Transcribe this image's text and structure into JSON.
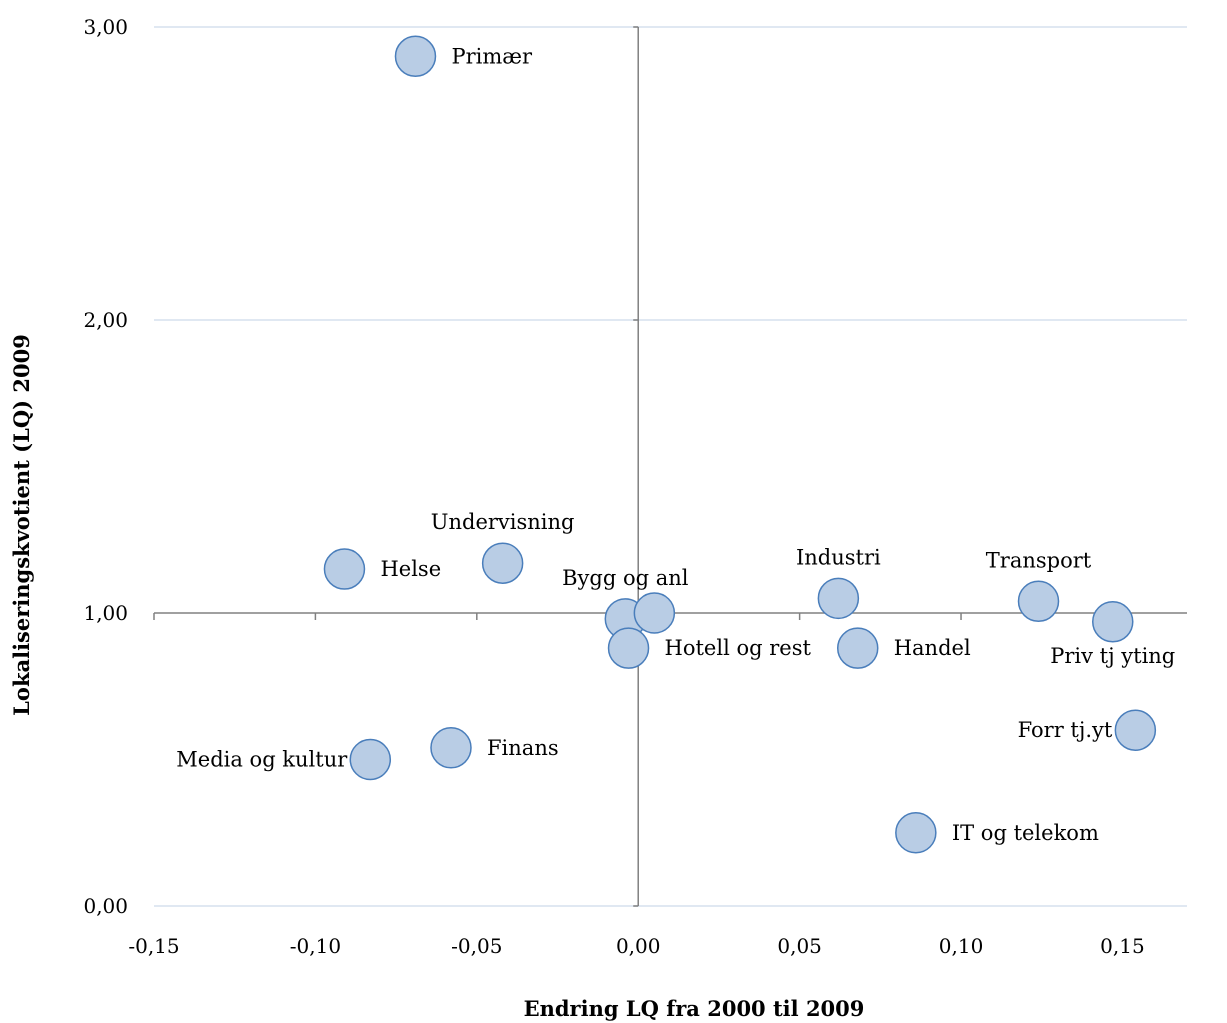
{
  "chart_data": {
    "type": "scatter",
    "title": "",
    "xlabel": "Endring LQ fra 2000 til 2009",
    "ylabel": "Lokaliseringskvotient (LQ) 2009",
    "xlim": [
      -0.15,
      0.17
    ],
    "ylim": [
      0,
      3
    ],
    "x_ticks": [
      -0.15,
      -0.1,
      -0.05,
      0.0,
      0.05,
      0.1,
      0.15
    ],
    "x_tick_labels": [
      "-0,15",
      "-0,10",
      "-0,05",
      "0,00",
      "0,05",
      "0,10",
      "0,15"
    ],
    "y_ticks": [
      0,
      1,
      2,
      3
    ],
    "y_tick_labels": [
      "0,00",
      "1,00",
      "2,00",
      "3,00"
    ],
    "x_axis_crosses_at_y": 1.0,
    "y_axis_crosses_at_x": 0.0,
    "grid": "horizontal",
    "legend": "none",
    "marker_fill": "#b9cde5",
    "marker_edge": "#4a7ebb",
    "points": [
      {
        "label": "Primær",
        "x": -0.069,
        "y": 2.9,
        "label_pos": "right"
      },
      {
        "label": "Undervisning",
        "x": -0.042,
        "y": 1.17,
        "label_pos": "above"
      },
      {
        "label": "Helse",
        "x": -0.091,
        "y": 1.15,
        "label_pos": "right"
      },
      {
        "label": "Bygg og anl",
        "x": -0.004,
        "y": 0.98,
        "label_pos": "above"
      },
      {
        "label": "",
        "x": 0.005,
        "y": 1.0,
        "label_pos": "none"
      },
      {
        "label": "Hotell og rest",
        "x": -0.003,
        "y": 0.88,
        "label_pos": "right"
      },
      {
        "label": "Industri",
        "x": 0.062,
        "y": 1.05,
        "label_pos": "above"
      },
      {
        "label": "Handel",
        "x": 0.068,
        "y": 0.88,
        "label_pos": "right"
      },
      {
        "label": "Transport",
        "x": 0.124,
        "y": 1.04,
        "label_pos": "above"
      },
      {
        "label": "Priv tj yting",
        "x": 0.147,
        "y": 0.97,
        "label_pos": "below"
      },
      {
        "label": "Forr tj.yt",
        "x": 0.154,
        "y": 0.6,
        "label_pos": "left"
      },
      {
        "label": "IT og telekom",
        "x": 0.086,
        "y": 0.25,
        "label_pos": "right"
      },
      {
        "label": "Finans",
        "x": -0.058,
        "y": 0.54,
        "label_pos": "right"
      },
      {
        "label": "Media og kultur",
        "x": -0.083,
        "y": 0.5,
        "label_pos": "left"
      }
    ]
  }
}
